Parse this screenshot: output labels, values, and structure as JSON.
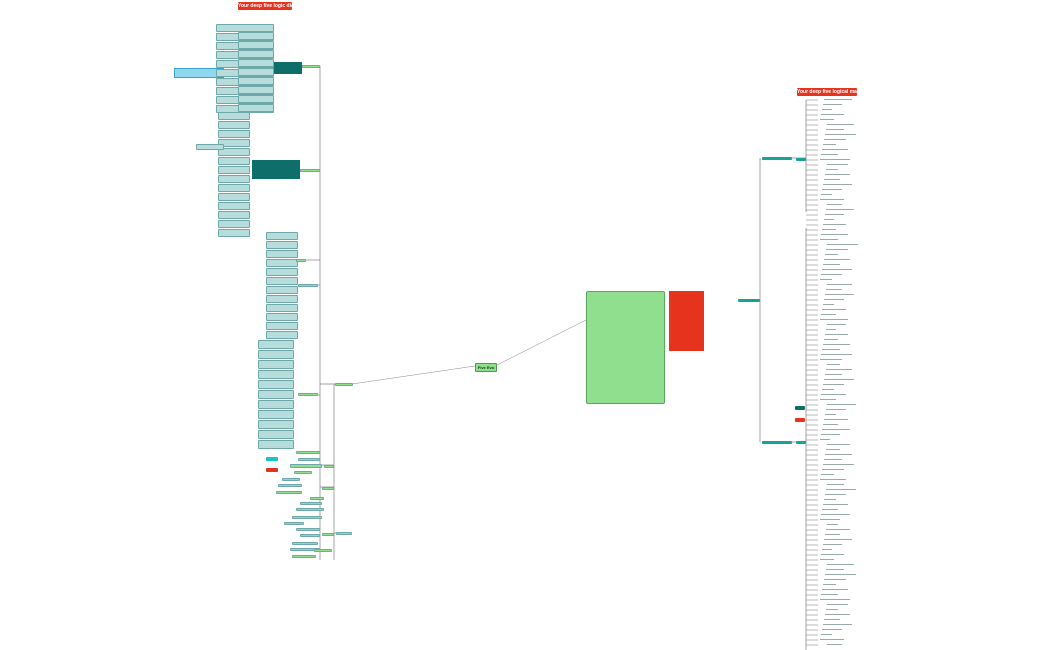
{
  "banners": {
    "left": "Your deep five logic diafer",
    "right": "Your deep five logical map"
  },
  "center_node": "Five Evo",
  "colors": {
    "banner_red": "#e5331e",
    "node_green": "#8fdf8f",
    "node_teal_light": "#b6dcdc",
    "node_teal_dark": "#0d6e6a",
    "node_teal": "#17a39a",
    "node_blue": "#8fd8f0",
    "connector": "#4a4a4a"
  }
}
